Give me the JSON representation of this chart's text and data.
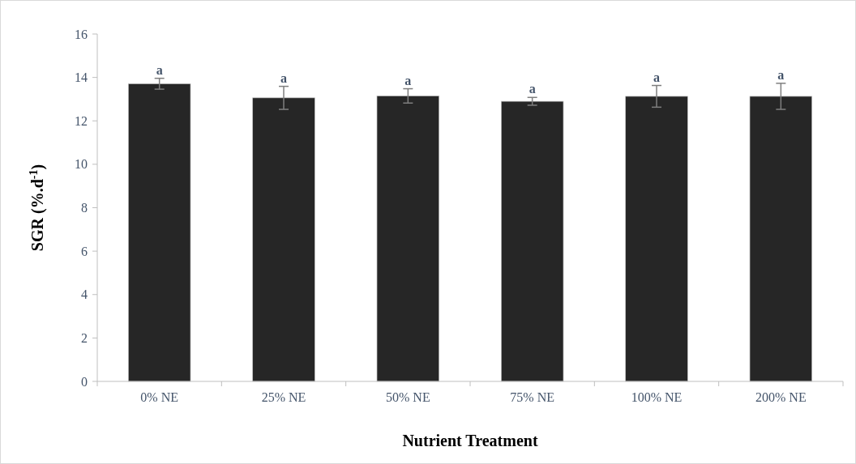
{
  "chart_data": {
    "type": "bar",
    "xlabel": "Nutrient Treatment",
    "ylabel": "SGR (%.d$^{-1}$)",
    "categories": [
      "0% NE",
      "25% NE",
      "50% NE",
      "75% NE",
      "100% NE",
      "200% NE"
    ],
    "values": [
      13.71,
      13.06,
      13.15,
      12.9,
      13.13,
      13.13
    ],
    "errors": [
      0.25,
      0.53,
      0.33,
      0.18,
      0.5,
      0.6
    ],
    "color": "#262626",
    "ylim": [
      0,
      16
    ],
    "yticks": [
      0,
      2,
      4,
      6,
      8,
      10,
      12,
      14,
      16
    ],
    "grid": false,
    "annotations": [
      {
        "text": "a",
        "x": "0% NE",
        "y": 13.96
      },
      {
        "text": "a",
        "x": "25% NE",
        "y": 13.59
      },
      {
        "text": "a",
        "x": "50% NE",
        "y": 13.48
      },
      {
        "text": "a",
        "x": "75% NE",
        "y": 13.08
      },
      {
        "text": "a",
        "x": "100% NE",
        "y": 13.63
      },
      {
        "text": "a",
        "x": "200% NE",
        "y": 13.73
      }
    ]
  }
}
